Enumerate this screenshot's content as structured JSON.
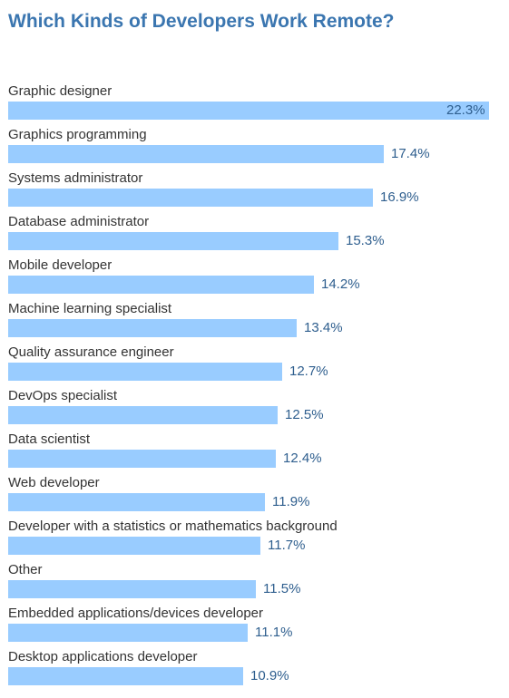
{
  "title": "Which Kinds of Developers Work Remote?",
  "chart_data": {
    "type": "bar",
    "orientation": "horizontal",
    "title": "Which Kinds of Developers Work Remote?",
    "categories": [
      "Graphic designer",
      "Graphics programming",
      "Systems administrator",
      "Database administrator",
      "Mobile developer",
      "Machine learning specialist",
      "Quality assurance engineer",
      "DevOps specialist",
      "Data scientist",
      "Web developer",
      "Developer with a statistics or mathematics background",
      "Other",
      "Embedded applications/devices developer",
      "Desktop applications developer"
    ],
    "values": [
      22.3,
      17.4,
      16.9,
      15.3,
      14.2,
      13.4,
      12.7,
      12.5,
      12.4,
      11.9,
      11.7,
      11.5,
      11.1,
      10.9
    ],
    "value_labels": [
      "22.3%",
      "17.4%",
      "16.9%",
      "15.3%",
      "14.2%",
      "13.4%",
      "12.7%",
      "12.5%",
      "12.4%",
      "11.9%",
      "11.7%",
      "11.5%",
      "11.1%",
      "10.9%"
    ],
    "unit": "%",
    "bar_color": "#99ccff",
    "xlim": [
      0,
      22.3
    ],
    "grid": false,
    "legend": "none"
  }
}
